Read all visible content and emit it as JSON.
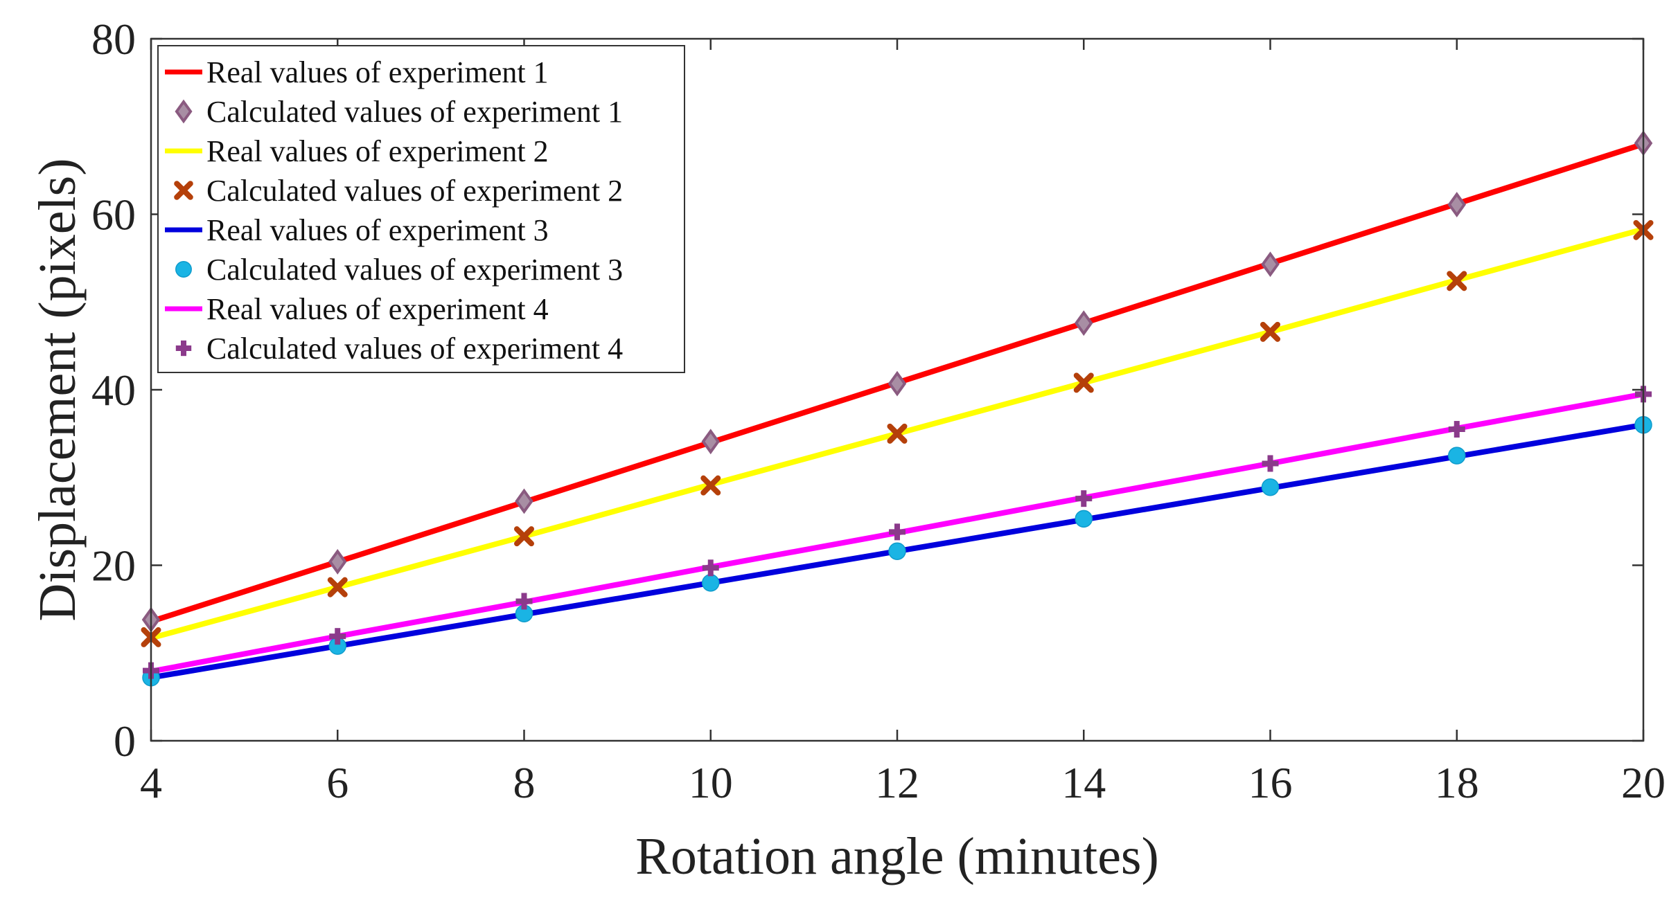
{
  "chart_data": {
    "type": "line",
    "title": "",
    "xlabel": "Rotation angle (minutes)",
    "ylabel": "Displacement (pixels)",
    "xlim": [
      4,
      20
    ],
    "ylim": [
      0,
      80
    ],
    "xticks": [
      4,
      6,
      8,
      10,
      12,
      14,
      16,
      18,
      20
    ],
    "yticks": [
      0,
      20,
      40,
      60,
      80
    ],
    "grid": false,
    "legend_position": "top-left",
    "x": [
      4,
      6,
      8,
      10,
      12,
      14,
      16,
      18,
      20
    ],
    "series": [
      {
        "name": "Real values of experiment 1",
        "kind": "line",
        "color": "#ff0000",
        "values": [
          13.6,
          20.4,
          27.2,
          34.0,
          40.8,
          47.6,
          54.4,
          61.2,
          68.0
        ]
      },
      {
        "name": "Calculated values of experiment 1",
        "kind": "marker",
        "marker": "diamond",
        "color": "#8a5a80",
        "values": [
          13.8,
          20.4,
          27.3,
          34.1,
          40.7,
          47.6,
          54.3,
          61.1,
          68.1
        ]
      },
      {
        "name": "Real values of experiment 2",
        "kind": "line",
        "color": "#ffff00",
        "values": [
          11.7,
          17.5,
          23.3,
          29.2,
          35.0,
          40.8,
          46.6,
          52.5,
          58.3
        ]
      },
      {
        "name": "Calculated values of experiment 2",
        "kind": "marker",
        "marker": "x",
        "color": "#b5400a",
        "values": [
          11.8,
          17.5,
          23.3,
          29.1,
          35.0,
          40.8,
          46.6,
          52.4,
          58.2
        ]
      },
      {
        "name": "Real values of experiment 3",
        "kind": "line",
        "color": "#0000dd",
        "values": [
          7.2,
          10.8,
          14.4,
          18.0,
          21.6,
          25.2,
          28.8,
          32.4,
          36.0
        ]
      },
      {
        "name": "Calculated values of experiment 3",
        "kind": "marker",
        "marker": "circle",
        "color": "#1ab4e4",
        "values": [
          7.2,
          10.8,
          14.5,
          18.0,
          21.6,
          25.3,
          28.9,
          32.5,
          36.0
        ]
      },
      {
        "name": "Real values of experiment 4",
        "kind": "line",
        "color": "#ff00ff",
        "values": [
          7.9,
          11.9,
          15.8,
          19.8,
          23.7,
          27.7,
          31.6,
          35.6,
          39.5
        ]
      },
      {
        "name": "Calculated values of experiment 4",
        "kind": "marker",
        "marker": "plus",
        "color": "#8b3a8b",
        "values": [
          8.0,
          11.9,
          15.9,
          19.7,
          23.8,
          27.6,
          31.6,
          35.5,
          39.5
        ]
      }
    ]
  }
}
